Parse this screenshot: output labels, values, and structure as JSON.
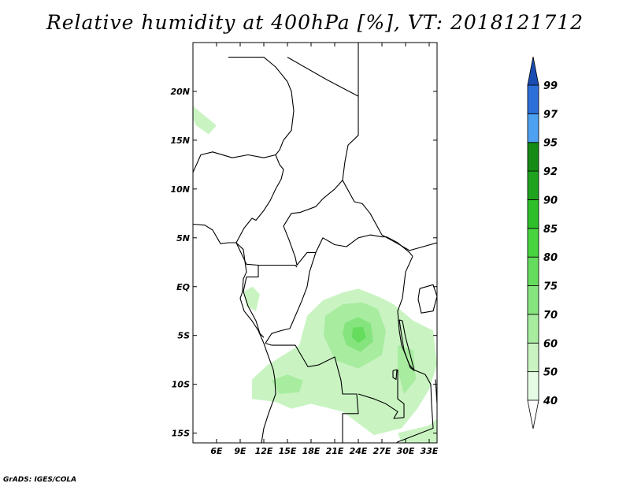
{
  "title": "Relative humidity at 400hPa [%], VT: 2018121712",
  "credit": "GrADS: IGES/COLA",
  "map": {
    "lon_range": [
      3,
      34
    ],
    "lat_range": [
      -16,
      25
    ],
    "lon_ticks": [
      6,
      9,
      12,
      15,
      18,
      21,
      24,
      27,
      30,
      33
    ],
    "lon_labels": [
      "6E",
      "9E",
      "12E",
      "15E",
      "18E",
      "21E",
      "24E",
      "27E",
      "30E",
      "33E"
    ],
    "lat_ticks": [
      20,
      15,
      10,
      5,
      0,
      -5,
      -10,
      -15
    ],
    "lat_labels": [
      "20N",
      "15N",
      "10N",
      "5N",
      "EQ",
      "5S",
      "10S",
      "15S"
    ],
    "humidity_regions": [
      {
        "label": "northwest patch",
        "level": 50,
        "points": [
          [
            3,
            18.5
          ],
          [
            4.5,
            17.5
          ],
          [
            6,
            16.5
          ],
          [
            5,
            15.6
          ],
          [
            3.4,
            16.5
          ],
          [
            3,
            17.2
          ]
        ]
      },
      {
        "label": "gabon patch",
        "level": 50,
        "points": [
          [
            9.4,
            -0.5
          ],
          [
            10.6,
            0
          ],
          [
            11.5,
            -0.8
          ],
          [
            11,
            -2.5
          ],
          [
            9.8,
            -2
          ]
        ]
      },
      {
        "label": "congo basin band",
        "level": 50,
        "points": [
          [
            16.5,
            -6
          ],
          [
            17.5,
            -3
          ],
          [
            19.5,
            -1.4
          ],
          [
            22,
            -0.6
          ],
          [
            24,
            -0.2
          ],
          [
            26.5,
            -1
          ],
          [
            28.5,
            -1.8
          ],
          [
            31,
            -3.5
          ],
          [
            33.5,
            -4.5
          ],
          [
            34,
            -8
          ],
          [
            33,
            -10.5
          ],
          [
            31.5,
            -12.5
          ],
          [
            29.5,
            -14.5
          ],
          [
            26,
            -15.2
          ],
          [
            24,
            -14
          ],
          [
            22,
            -12.8
          ],
          [
            18,
            -12
          ],
          [
            15.5,
            -12.5
          ],
          [
            13.5,
            -11.8
          ],
          [
            10.5,
            -11.5
          ],
          [
            10.5,
            -9.5
          ],
          [
            12.5,
            -8
          ],
          [
            14.5,
            -7
          ]
        ]
      },
      {
        "label": "southeast corner",
        "level": 50,
        "points": [
          [
            29,
            -15
          ],
          [
            33,
            -14.2
          ],
          [
            34,
            -13.5
          ],
          [
            34,
            -16
          ],
          [
            29.5,
            -16
          ]
        ]
      },
      {
        "label": "central core",
        "level": 60,
        "points": [
          [
            19.8,
            -3
          ],
          [
            22,
            -1.8
          ],
          [
            24.5,
            -1.6
          ],
          [
            26.5,
            -2.3
          ],
          [
            27.5,
            -4.5
          ],
          [
            27,
            -7
          ],
          [
            24,
            -8.4
          ],
          [
            21,
            -7.5
          ],
          [
            19.6,
            -5
          ]
        ]
      },
      {
        "label": "eastern lakes",
        "level": 60,
        "points": [
          [
            29,
            -6
          ],
          [
            31,
            -6.5
          ],
          [
            31.3,
            -9.5
          ],
          [
            29.8,
            -11
          ],
          [
            29,
            -8.5
          ]
        ]
      },
      {
        "label": "southwest plume",
        "level": 60,
        "points": [
          [
            13,
            -9.6
          ],
          [
            15,
            -9
          ],
          [
            17,
            -9.6
          ],
          [
            16.5,
            -10.8
          ],
          [
            14,
            -11
          ]
        ]
      },
      {
        "label": "core maximum",
        "level": 70,
        "points": [
          [
            22.3,
            -3.7
          ],
          [
            24,
            -3.1
          ],
          [
            25.6,
            -3.8
          ],
          [
            25.9,
            -5.6
          ],
          [
            24.3,
            -6.7
          ],
          [
            22.5,
            -6
          ],
          [
            22,
            -4.8
          ]
        ]
      },
      {
        "label": "core maximum inner",
        "level": 75,
        "points": [
          [
            23.3,
            -4.2
          ],
          [
            24.6,
            -4.1
          ],
          [
            25,
            -5.2
          ],
          [
            24,
            -5.8
          ],
          [
            23.2,
            -5.2
          ]
        ]
      }
    ],
    "borders": [
      {
        "label": "niger-chad",
        "points": [
          [
            7.5,
            23.5
          ],
          [
            9.5,
            23.5
          ],
          [
            12,
            23.5
          ],
          [
            13.5,
            22.5
          ],
          [
            14,
            22
          ],
          [
            15,
            21
          ],
          [
            15.5,
            20
          ],
          [
            15.8,
            18
          ],
          [
            15.5,
            16
          ],
          [
            14.5,
            15
          ],
          [
            14,
            14
          ],
          [
            13.5,
            13.5
          ]
        ]
      },
      {
        "label": "chad-libya",
        "points": [
          [
            15,
            23.5
          ],
          [
            20,
            21.2
          ],
          [
            24,
            19.5
          ],
          [
            24,
            22.5
          ],
          [
            24,
            25
          ]
        ]
      },
      {
        "label": "chad-sudan",
        "points": [
          [
            24,
            19.5
          ],
          [
            24,
            15.5
          ],
          [
            22.7,
            14.5
          ],
          [
            22.3,
            12.8
          ],
          [
            22,
            10.9
          ],
          [
            21,
            10
          ],
          [
            19.5,
            9
          ],
          [
            18.6,
            8.2
          ],
          [
            16.6,
            7.6
          ],
          [
            15.5,
            7.5
          ],
          [
            14.5,
            6.2
          ]
        ]
      },
      {
        "label": "nigeria-cameroon",
        "points": [
          [
            13.5,
            13.5
          ],
          [
            14,
            12.5
          ],
          [
            14.5,
            12
          ],
          [
            14.2,
            11
          ],
          [
            13.5,
            10
          ],
          [
            12.8,
            8.8
          ],
          [
            12,
            7.8
          ],
          [
            11,
            6.8
          ],
          [
            10.5,
            7
          ],
          [
            9.5,
            6
          ],
          [
            8.7,
            4.8
          ],
          [
            8.5,
            4.5
          ]
        ]
      },
      {
        "label": "nigeria-niger",
        "points": [
          [
            3,
            11.7
          ],
          [
            4,
            13.5
          ],
          [
            5.5,
            13.8
          ],
          [
            8,
            13.2
          ],
          [
            10,
            13.5
          ],
          [
            12,
            13.2
          ],
          [
            13.5,
            13.5
          ]
        ]
      },
      {
        "label": "car-border",
        "points": [
          [
            14.5,
            6.2
          ],
          [
            15.2,
            4.8
          ],
          [
            16,
            3
          ],
          [
            16.2,
            2.2
          ],
          [
            17.5,
            3.5
          ],
          [
            18.6,
            3.5
          ],
          [
            19.5,
            5
          ],
          [
            21,
            4.3
          ],
          [
            22.5,
            4.1
          ],
          [
            24,
            5
          ],
          [
            25.5,
            5.3
          ],
          [
            27,
            5.1
          ],
          [
            27.6,
            5.1
          ],
          [
            29,
            4.5
          ],
          [
            30.5,
            3.5
          ],
          [
            30.9,
            3.1
          ]
        ]
      },
      {
        "label": "sudan-south",
        "points": [
          [
            22,
            10.9
          ],
          [
            23.5,
            8.7
          ],
          [
            24.5,
            8.5
          ],
          [
            25.5,
            7.5
          ],
          [
            27,
            5.3
          ],
          [
            29,
            4.4
          ],
          [
            30.5,
            3.7
          ],
          [
            34,
            4.5
          ]
        ]
      },
      {
        "label": "cameroon-congo",
        "points": [
          [
            8.5,
            4.5
          ],
          [
            9.8,
            2.3
          ],
          [
            11.3,
            2.2
          ],
          [
            13.2,
            2.2
          ],
          [
            16,
            2.2
          ],
          [
            16.2,
            2
          ]
        ]
      },
      {
        "label": "gabon-congo",
        "points": [
          [
            11.3,
            2.2
          ],
          [
            11.3,
            1
          ],
          [
            9.8,
            1
          ],
          [
            9.4,
            -0.5
          ],
          [
            10,
            -2
          ],
          [
            11,
            -3.5
          ],
          [
            11.5,
            -4.8
          ],
          [
            12,
            -5.2
          ]
        ]
      },
      {
        "label": "congo-drc river",
        "points": [
          [
            18.6,
            3.5
          ],
          [
            17.8,
            1.5
          ],
          [
            17.5,
            0
          ],
          [
            16.8,
            -1.5
          ],
          [
            16,
            -3
          ],
          [
            15.3,
            -4.3
          ],
          [
            14.2,
            -4.5
          ],
          [
            13,
            -4.8
          ],
          [
            12.2,
            -5.8
          ]
        ]
      },
      {
        "label": "drc-angola",
        "points": [
          [
            12.2,
            -5.8
          ],
          [
            13,
            -6
          ],
          [
            16,
            -6
          ],
          [
            17.6,
            -8.2
          ],
          [
            19,
            -8
          ],
          [
            21,
            -7.2
          ],
          [
            21.8,
            -9.6
          ],
          [
            22,
            -11
          ],
          [
            23.8,
            -11
          ],
          [
            24,
            -13
          ],
          [
            22,
            -13
          ],
          [
            22,
            -16
          ]
        ]
      },
      {
        "label": "drc-zambia",
        "points": [
          [
            24,
            -11
          ],
          [
            26,
            -11.5
          ],
          [
            27.5,
            -12
          ],
          [
            29,
            -12.8
          ],
          [
            28.5,
            -13.5
          ],
          [
            29.8,
            -13.4
          ],
          [
            29.8,
            -12
          ],
          [
            29,
            -11.5
          ],
          [
            29,
            -8.5
          ]
        ]
      },
      {
        "label": "drc-east",
        "points": [
          [
            30.9,
            3.1
          ],
          [
            30,
            1.5
          ],
          [
            29.6,
            -1.2
          ],
          [
            29,
            -2.5
          ],
          [
            29.2,
            -4.5
          ],
          [
            29.5,
            -6
          ],
          [
            30.5,
            -8
          ],
          [
            31,
            -8.5
          ]
        ]
      },
      {
        "label": "angola-namibia",
        "points": [
          [
            11.7,
            -16
          ],
          [
            13,
            -17
          ],
          [
            14,
            -17.4
          ],
          [
            17,
            -17.5
          ],
          [
            18.5,
            -17.5
          ],
          [
            21,
            -18
          ]
        ]
      },
      {
        "label": "zambia-east",
        "points": [
          [
            31,
            -8.5
          ],
          [
            32.5,
            -9
          ],
          [
            33.2,
            -10
          ],
          [
            33.3,
            -12
          ],
          [
            33.5,
            -14.5
          ],
          [
            30,
            -15.6
          ],
          [
            29,
            -15.9
          ],
          [
            27.5,
            -17
          ]
        ]
      },
      {
        "label": "malawi",
        "points": [
          [
            33.8,
            -9.5
          ],
          [
            34,
            -12
          ],
          [
            34.3,
            -14.5
          ]
        ]
      },
      {
        "label": "coastline",
        "points": [
          [
            3,
            6.4
          ],
          [
            4.5,
            6.3
          ],
          [
            5.5,
            5.8
          ],
          [
            6.5,
            4.4
          ],
          [
            7.5,
            4.5
          ],
          [
            8.5,
            4.5
          ],
          [
            9.4,
            3.8
          ],
          [
            9.6,
            2.6
          ],
          [
            9.8,
            1.5
          ],
          [
            9.4,
            0.8
          ],
          [
            9.3,
            -0.5
          ],
          [
            9,
            -1.2
          ],
          [
            9.5,
            -2.5
          ],
          [
            10.5,
            -3.5
          ],
          [
            11.3,
            -4.5
          ],
          [
            12,
            -5.8
          ],
          [
            12.3,
            -6.5
          ],
          [
            13.2,
            -8.5
          ],
          [
            13.4,
            -9.5
          ],
          [
            13.5,
            -11
          ],
          [
            12.6,
            -13
          ],
          [
            12,
            -14.5
          ],
          [
            11.7,
            -16
          ]
        ]
      },
      {
        "label": "lake victoria",
        "points": [
          [
            31.8,
            -0.2
          ],
          [
            33.5,
            0.2
          ],
          [
            34,
            -1
          ],
          [
            33.5,
            -2.5
          ],
          [
            32,
            -2.7
          ],
          [
            31.6,
            -1.3
          ],
          [
            31.8,
            -0.2
          ]
        ]
      },
      {
        "label": "lake tanganyika",
        "points": [
          [
            29.2,
            -3.4
          ],
          [
            29.5,
            -5
          ],
          [
            29.8,
            -6.5
          ],
          [
            30.6,
            -8.3
          ],
          [
            31.1,
            -8.6
          ],
          [
            30.6,
            -7
          ],
          [
            30,
            -5.2
          ],
          [
            29.6,
            -3.5
          ],
          [
            29.2,
            -3.4
          ]
        ]
      },
      {
        "label": "lake mweru",
        "points": [
          [
            28.4,
            -8.6
          ],
          [
            28.9,
            -8.5
          ],
          [
            28.8,
            -9.5
          ],
          [
            28.4,
            -9.3
          ],
          [
            28.4,
            -8.6
          ]
        ]
      }
    ]
  },
  "colorbar": {
    "levels": [
      40,
      50,
      60,
      70,
      75,
      80,
      85,
      90,
      92,
      95,
      97,
      99
    ],
    "labels": [
      "40",
      "50",
      "60",
      "70",
      "75",
      "80",
      "85",
      "90",
      "92",
      "95",
      "97",
      "99"
    ],
    "colors": [
      "#ffffff",
      "#e6fbe4",
      "#c9f4c2",
      "#a8ecA0",
      "#86e47f",
      "#66dc5e",
      "#48d43f",
      "#2fbf2b",
      "#1fa31f",
      "#158a15",
      "#4ea1f0",
      "#2c6fd8",
      "#1a4db3"
    ]
  }
}
